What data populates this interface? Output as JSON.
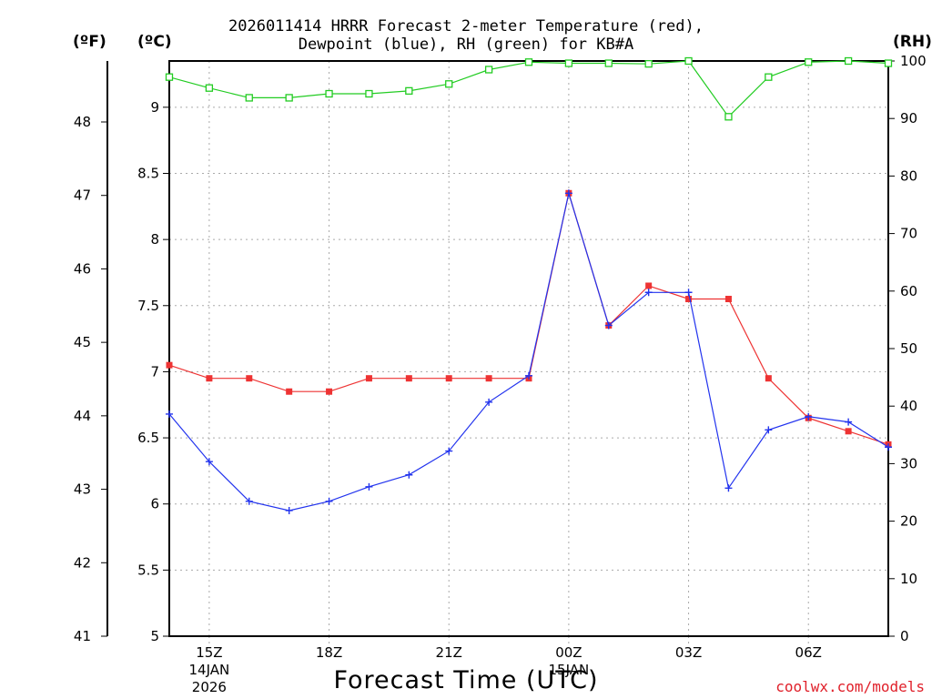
{
  "title": {
    "line1": "2026011414 HRRR Forecast 2-meter Temperature (red),",
    "line2": "Dewpoint (blue), RH (green) for KB#A"
  },
  "units": {
    "fahrenheit": "(ºF)",
    "celsius": "(ºC)",
    "rh": "(RH)"
  },
  "xlabel": "Forecast Time (UTC)",
  "credit": "coolwx.com/models",
  "chart_data": {
    "type": "line",
    "x_hours": [
      14,
      15,
      16,
      17,
      18,
      19,
      20,
      21,
      22,
      23,
      24,
      25,
      26,
      27,
      28,
      29,
      30,
      31,
      32
    ],
    "xlim": [
      14,
      32
    ],
    "x_ticks": [
      {
        "hour": 15,
        "label": "15Z",
        "sub": [
          "14JAN",
          "2026"
        ]
      },
      {
        "hour": 18,
        "label": "18Z",
        "sub": []
      },
      {
        "hour": 21,
        "label": "21Z",
        "sub": []
      },
      {
        "hour": 24,
        "label": "00Z",
        "sub": [
          "15JAN"
        ]
      },
      {
        "hour": 27,
        "label": "03Z",
        "sub": []
      },
      {
        "hour": 30,
        "label": "06Z",
        "sub": []
      }
    ],
    "celsius_axis": {
      "range": [
        5,
        9.35
      ],
      "ticks": [
        "5",
        "5.5",
        "6",
        "6.5",
        "7",
        "7.5",
        "8",
        "8.5",
        "9"
      ]
    },
    "fahrenheit_axis": {
      "ticks": [
        "41",
        "42",
        "43",
        "44",
        "45",
        "46",
        "47",
        "48"
      ]
    },
    "rh_axis": {
      "range": [
        0,
        100
      ],
      "ticks": [
        "0",
        "10",
        "20",
        "30",
        "40",
        "50",
        "60",
        "70",
        "80",
        "90",
        "100"
      ]
    },
    "grid": true,
    "series": [
      {
        "name": "Temperature",
        "unit": "C",
        "color": "#ee3333",
        "marker": "filled-square",
        "values": [
          7.05,
          6.95,
          6.95,
          6.85,
          6.85,
          6.95,
          6.95,
          6.95,
          6.95,
          6.95,
          8.35,
          7.35,
          7.65,
          7.55,
          7.55,
          6.95,
          6.65,
          6.55,
          6.45
        ]
      },
      {
        "name": "Dewpoint",
        "unit": "C",
        "color": "#2233ee",
        "marker": "plus",
        "values": [
          6.68,
          6.32,
          6.02,
          5.95,
          6.02,
          6.13,
          6.22,
          6.4,
          6.77,
          6.97,
          8.35,
          7.35,
          7.6,
          7.6,
          6.12,
          6.56,
          6.66,
          6.62,
          6.43
        ]
      },
      {
        "name": "RH",
        "unit": "%",
        "color": "#22cc22",
        "marker": "open-square",
        "values": [
          97.2,
          95.3,
          93.6,
          93.6,
          94.3,
          94.3,
          94.8,
          96.0,
          98.5,
          99.8,
          99.6,
          99.6,
          99.5,
          100,
          90.3,
          97.2,
          99.8,
          100,
          99.6
        ]
      }
    ]
  }
}
